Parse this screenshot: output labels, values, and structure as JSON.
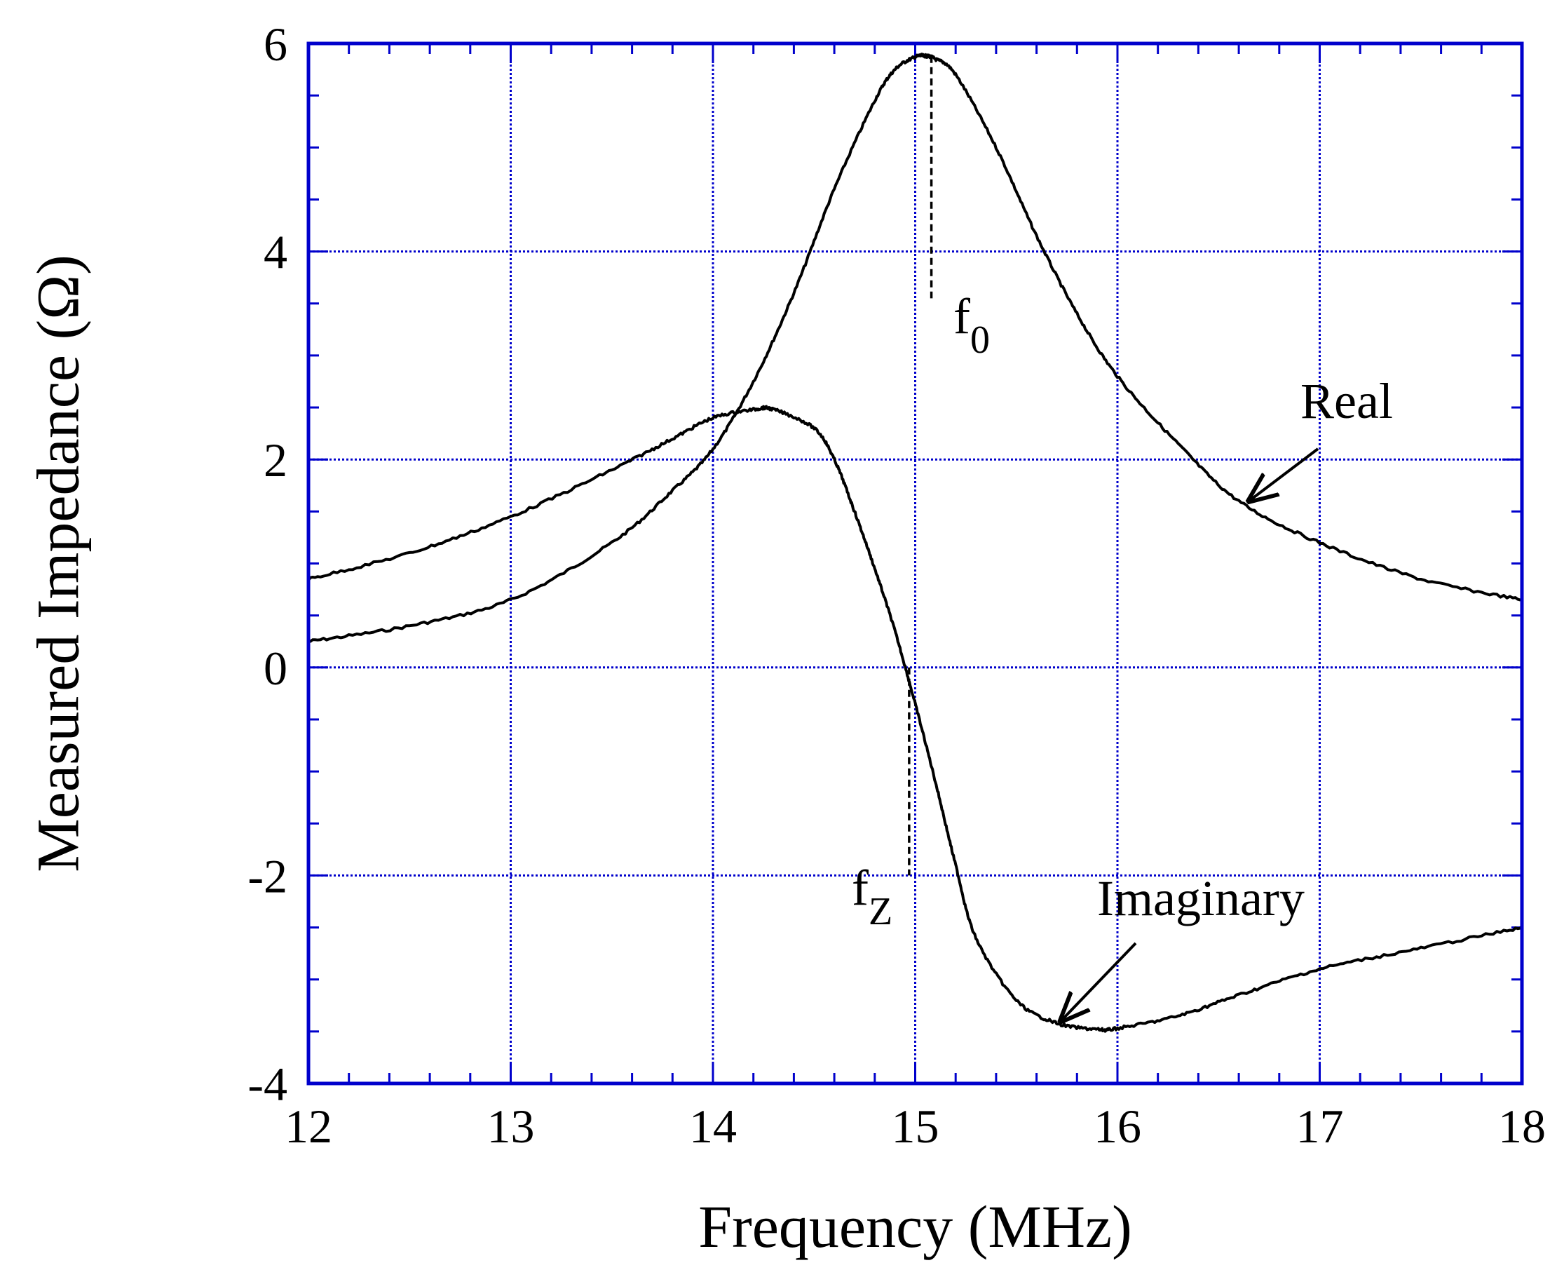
{
  "chart_data": {
    "type": "line",
    "title": "",
    "xlabel": "Frequency (MHz)",
    "ylabel": "Measured Impedance (Ω)",
    "xlim": [
      12,
      18
    ],
    "ylim": [
      -4,
      6
    ],
    "x_ticks": [
      12,
      13,
      14,
      15,
      16,
      17,
      18
    ],
    "y_ticks": [
      -4,
      -2,
      0,
      2,
      4,
      6
    ],
    "x_tick_labels": [
      "12",
      "13",
      "14",
      "15",
      "16",
      "17",
      "18"
    ],
    "y_tick_labels": [
      "-4",
      "-2",
      "0",
      "2",
      "4",
      "6"
    ],
    "grid": true,
    "colors": {
      "grid": "#0000cc",
      "frame": "#0000cc",
      "line": "#000000"
    },
    "series": [
      {
        "name": "Real",
        "x": [
          12.0,
          12.5,
          13.0,
          13.5,
          13.8,
          14.0,
          14.2,
          14.4,
          14.6,
          14.8,
          14.9,
          15.0,
          15.05,
          15.1,
          15.2,
          15.4,
          15.6,
          15.8,
          16.0,
          16.3,
          16.6,
          17.0,
          17.5,
          18.0
        ],
        "y": [
          0.25,
          0.4,
          0.65,
          1.2,
          1.7,
          2.1,
          2.75,
          3.6,
          4.6,
          5.45,
          5.75,
          5.87,
          5.88,
          5.85,
          5.7,
          5.0,
          4.15,
          3.4,
          2.8,
          2.15,
          1.6,
          1.2,
          0.85,
          0.65
        ]
      },
      {
        "name": "Imaginary",
        "x": [
          12.0,
          12.5,
          13.0,
          13.5,
          13.8,
          14.0,
          14.2,
          14.3,
          14.5,
          14.6,
          14.7,
          14.8,
          14.9,
          15.0,
          15.1,
          15.2,
          15.3,
          15.5,
          15.7,
          15.9,
          16.0,
          16.3,
          16.6,
          17.0,
          17.5,
          18.0
        ],
        "y": [
          0.85,
          1.1,
          1.45,
          1.9,
          2.2,
          2.4,
          2.48,
          2.48,
          2.3,
          2.0,
          1.5,
          0.95,
          0.35,
          -0.35,
          -1.1,
          -1.9,
          -2.6,
          -3.2,
          -3.42,
          -3.48,
          -3.47,
          -3.35,
          -3.15,
          -2.9,
          -2.7,
          -2.5
        ]
      }
    ],
    "annotations": [
      {
        "text": "Real",
        "series": "Real",
        "arrow_to": [
          16.65,
          1.6
        ]
      },
      {
        "text": "Imaginary",
        "series": "Imaginary",
        "arrow_to": [
          15.72,
          -3.4
        ]
      },
      {
        "text": "f",
        "subscript": "0",
        "x": 15.08,
        "dashed_from_y": 5.88,
        "dashed_to_y": 3.55
      },
      {
        "text": "f",
        "subscript": "Z",
        "x": 14.97,
        "dashed_from_y": 0.0,
        "dashed_to_y": -2.0
      }
    ]
  }
}
